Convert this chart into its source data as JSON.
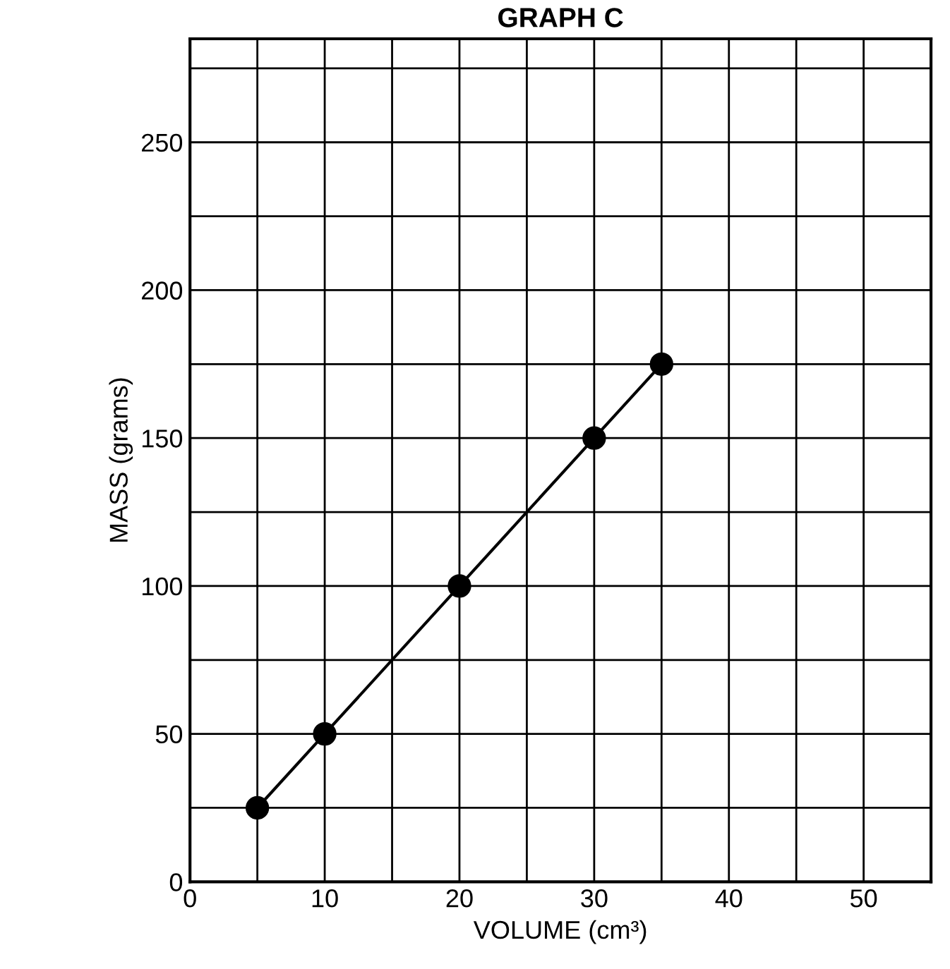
{
  "chart_data": {
    "type": "line",
    "title": "GRAPH C",
    "xlabel": "VOLUME (cm³)",
    "ylabel": "MASS (grams)",
    "x": [
      5,
      10,
      20,
      30,
      35
    ],
    "series": [
      {
        "color": "#000000",
        "values": [
          25,
          50,
          100,
          150,
          175
        ]
      }
    ],
    "xlim": [
      0,
      55
    ],
    "ylim": [
      0,
      285
    ],
    "xticks": [
      0,
      {
        "value": 5,
        "label": null
      },
      10,
      {
        "value": 15,
        "label": null
      },
      20,
      {
        "value": 25,
        "label": null
      },
      30,
      {
        "value": 35,
        "label": null
      },
      40,
      {
        "value": 45,
        "label": null
      },
      50
    ],
    "yticks": [
      0,
      {
        "value": 25,
        "label": null
      },
      50,
      {
        "value": 75,
        "label": null
      },
      100,
      {
        "value": 125,
        "label": null
      },
      150,
      {
        "value": 175,
        "label": null
      },
      200,
      {
        "value": 225,
        "label": null
      },
      250,
      {
        "value": 275,
        "label": null
      }
    ],
    "grid": true,
    "marker": "circle",
    "line_style": "solid",
    "legend": false
  }
}
